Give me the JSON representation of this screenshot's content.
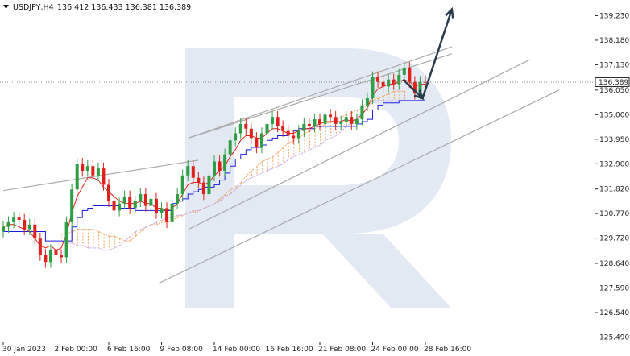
{
  "header": {
    "symbol": "USDJPY,H4",
    "ohlc": "136.412 136.433 136.381 136.389",
    "menu_icon": "triangle-down-icon"
  },
  "price_label": "136.389",
  "colors": {
    "bull": "#2e9e44",
    "bear": "#e0201a",
    "tenkan": "#e0201a",
    "kijun": "#1a1ae0",
    "cloud": "#f2a45c",
    "channel": "#a9a9a9",
    "arrow": "#2b3a4a",
    "watermark": "#dfe6f2"
  },
  "chart_data": {
    "type": "candlestick",
    "y_ticks": [
      "139.230",
      "138.180",
      "137.130",
      "136.050",
      "135.000",
      "133.950",
      "132.900",
      "131.820",
      "130.770",
      "129.720",
      "128.640",
      "127.590",
      "126.540",
      "125.490"
    ],
    "x_ticks": [
      "30 Jan 2023",
      "2 Feb 00:00",
      "6 Feb 16:00",
      "9 Feb 08:00",
      "14 Feb 00:00",
      "16 Feb 16:00",
      "21 Feb 08:00",
      "24 Feb 00:00",
      "28 Feb 16:00"
    ],
    "ylim": [
      125.3,
      139.9
    ],
    "last_price": 136.389,
    "closes": [
      130.2,
      130.4,
      130.6,
      130.5,
      130.1,
      130.3,
      129.7,
      129.0,
      128.7,
      129.2,
      129.0,
      128.9,
      130.4,
      131.8,
      132.9,
      132.6,
      132.8,
      132.4,
      132.7,
      132.0,
      131.3,
      130.9,
      131.2,
      131.5,
      131.0,
      131.3,
      131.6,
      131.1,
      131.4,
      130.8,
      131.0,
      130.4,
      131.2,
      131.6,
      132.4,
      132.8,
      132.3,
      132.1,
      131.6,
      132.4,
      133.0,
      132.6,
      133.3,
      133.9,
      134.2,
      134.6,
      134.4,
      134.0,
      133.6,
      134.2,
      134.6,
      134.9,
      134.5,
      134.3,
      134.1,
      134.0,
      134.3,
      134.6,
      134.5,
      134.8,
      134.6,
      135.0,
      134.9,
      134.6,
      134.7,
      134.9,
      134.6,
      134.8,
      135.4,
      135.7,
      136.6,
      136.4,
      136.2,
      136.5,
      136.3,
      136.7,
      137.0,
      136.4,
      135.9,
      136.4,
      136.389
    ],
    "tenkan": [
      130.2,
      130.3,
      130.3,
      130.2,
      130.1,
      130.0,
      129.7,
      129.4,
      129.3,
      129.4,
      129.2,
      129.3,
      129.9,
      130.8,
      131.5,
      131.9,
      132.3,
      132.3,
      132.2,
      131.9,
      131.7,
      131.5,
      131.3,
      131.2,
      131.2,
      131.2,
      131.3,
      131.2,
      131.2,
      131.0,
      131.0,
      130.9,
      131.0,
      131.2,
      131.6,
      132.0,
      132.1,
      132.1,
      132.0,
      132.1,
      132.4,
      132.6,
      132.8,
      133.2,
      133.5,
      133.9,
      134.1,
      134.1,
      134.0,
      134.0,
      134.2,
      134.4,
      134.4,
      134.3,
      134.2,
      134.2,
      134.3,
      134.4,
      134.4,
      134.5,
      134.6,
      134.7,
      134.7,
      134.7,
      134.7,
      134.8,
      134.7,
      134.8,
      135.0,
      135.3,
      135.8,
      136.1,
      136.2,
      136.3,
      136.3,
      136.4,
      136.5,
      136.4,
      136.2,
      136.3,
      136.3
    ],
    "kijun": [
      130.0,
      130.0,
      130.0,
      130.0,
      130.0,
      130.0,
      130.0,
      130.0,
      129.6,
      129.6,
      129.6,
      129.6,
      129.6,
      130.2,
      130.6,
      130.9,
      131.0,
      131.1,
      131.1,
      131.1,
      131.1,
      131.1,
      131.0,
      131.0,
      131.0,
      130.9,
      130.9,
      130.9,
      130.9,
      130.9,
      130.9,
      130.9,
      131.2,
      131.3,
      131.4,
      131.6,
      131.7,
      131.8,
      131.9,
      131.9,
      132.0,
      132.2,
      132.5,
      132.8,
      133.1,
      133.3,
      133.5,
      133.6,
      133.6,
      133.7,
      133.9,
      134.0,
      134.1,
      134.1,
      134.2,
      134.3,
      134.4,
      134.4,
      134.4,
      134.5,
      134.5,
      134.5,
      134.5,
      134.5,
      134.5,
      134.5,
      134.5,
      134.6,
      134.7,
      134.8,
      135.2,
      135.4,
      135.5,
      135.5,
      135.5,
      135.6,
      135.6,
      135.6,
      135.6,
      135.6,
      135.6
    ],
    "cloud_a": [
      129.9,
      129.9,
      130.0,
      130.1,
      130.1,
      130.1,
      130.1,
      130.0,
      129.9,
      129.8,
      129.8,
      129.7,
      129.6,
      129.6,
      129.8,
      130.0,
      130.2,
      130.3,
      130.3,
      130.4,
      130.4,
      130.5,
      130.6,
      130.7,
      130.8,
      130.8,
      130.9,
      131.0,
      131.1,
      131.2,
      131.4,
      131.6,
      131.8,
      131.9,
      132.1,
      132.4,
      132.6,
      132.8,
      133.0,
      133.1,
      133.2,
      133.4,
      133.6,
      133.8,
      133.9,
      134.0,
      134.2,
      134.3,
      134.4,
      134.5,
      134.6,
      134.7,
      134.8,
      134.9,
      135.0,
      135.1,
      135.2,
      135.3,
      135.4,
      135.6,
      135.7,
      135.8,
      135.9,
      136.0,
      136.0,
      136.0
    ],
    "cloud_b": [
      129.6,
      129.5,
      129.5,
      129.4,
      129.4,
      129.3,
      129.3,
      129.3,
      129.2,
      129.2,
      129.3,
      129.4,
      129.6,
      129.8,
      130.0,
      130.1,
      130.2,
      130.3,
      130.4,
      130.5,
      130.6,
      130.6,
      130.7,
      130.7,
      130.8,
      130.9,
      130.9,
      131.0,
      131.1,
      131.2,
      131.3,
      131.5,
      131.6,
      131.8,
      132.0,
      132.2,
      132.3,
      132.4,
      132.5,
      132.6,
      132.7,
      132.8,
      132.9,
      133.1,
      133.2,
      133.3,
      133.4,
      133.5,
      133.6,
      133.7,
      133.9,
      134.0,
      134.1,
      134.3,
      134.5,
      134.7,
      134.9,
      135.1,
      135.3,
      135.5,
      135.6,
      135.6,
      135.6,
      135.6,
      135.6,
      135.6
    ],
    "channel_lines": [
      {
        "x1": 0,
        "y1": 131.75,
        "x2": 40,
        "y2": 133.05
      },
      {
        "x1": 38,
        "y1": 134.0,
        "x2": 92,
        "y2": 137.9
      },
      {
        "x1": 38,
        "y1": 134.0,
        "x2": 92,
        "y2": 137.6
      },
      {
        "x1": 38,
        "y1": 130.1,
        "x2": 108,
        "y2": 137.35
      },
      {
        "x1": 32,
        "y1": 127.8,
        "x2": 114,
        "y2": 136.05
      }
    ],
    "forecast_path": [
      [
        82,
        136.5
      ],
      [
        86,
        135.7
      ],
      [
        92,
        139.5
      ]
    ]
  }
}
